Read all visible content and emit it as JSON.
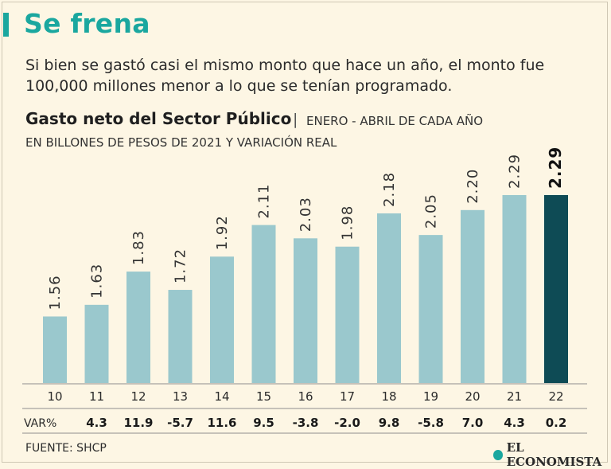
{
  "headline": "Se frena",
  "subheadline": "Si bien se gastó casi el mismo monto que hace un año, el monto fue 100,000 millones menor a lo que se tenían programado.",
  "chart_title": "Gasto neto del Sector Público",
  "chart_separator": "|",
  "chart_period": "ENERO - ABRIL DE CADA AÑO",
  "chart_units": "EN BILLONES DE PESOS DE 2021 Y VARIACIÓN REAL",
  "var_label": "VAR%",
  "source": "FUENTE: SHCP",
  "logo_text": "EL ECONOMISTA",
  "colors": {
    "bar": "#9ac8cd",
    "bar_highlight": "#0e4b55",
    "accent": "#1aa79f",
    "background": "#fdf6e4"
  },
  "chart_data": {
    "type": "bar",
    "title": "Gasto neto del Sector Público",
    "subtitle": "ENERO - ABRIL DE CADA AÑO",
    "ylabel": "EN BILLONES DE PESOS DE 2021 Y VARIACIÓN REAL",
    "categories": [
      "10",
      "11",
      "12",
      "13",
      "14",
      "15",
      "16",
      "17",
      "18",
      "19",
      "20",
      "21",
      "22"
    ],
    "values": [
      1.56,
      1.63,
      1.83,
      1.72,
      1.92,
      2.11,
      2.03,
      1.98,
      2.18,
      2.05,
      2.2,
      2.29,
      2.29
    ],
    "value_labels": [
      "1.56",
      "1.63",
      "1.83",
      "1.72",
      "1.92",
      "2.11",
      "2.03",
      "1.98",
      "2.18",
      "2.05",
      "2.20",
      "2.29",
      "2.29"
    ],
    "variation_labels": [
      "",
      "4.3",
      "11.9",
      "-5.7",
      "11.6",
      "9.5",
      "-3.8",
      "-2.0",
      "9.8",
      "-5.8",
      "7.0",
      "4.3",
      "0.2"
    ],
    "highlight_index": 12,
    "ylim": [
      1.16,
      2.29
    ],
    "grid": false,
    "legend": "none"
  }
}
